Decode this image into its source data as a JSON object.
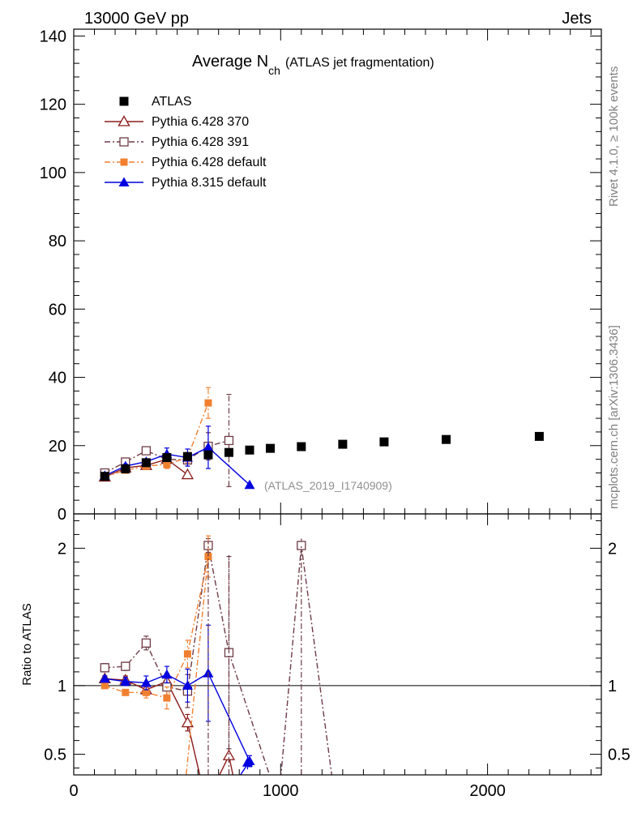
{
  "header": {
    "process": "13000 GeV pp",
    "category": "Jets"
  },
  "side_labels": {
    "rivet": "Rivet 4.1.0, ≥ 100k events",
    "source": "mcplots.cern.ch [arXiv:1306.3436]"
  },
  "chart_data": {
    "type": "line",
    "title_main": "Average N",
    "title_sub": "ch",
    "title_note": "(ATLAS jet fragmentation)",
    "analysis_label": "(ATLAS_2019_I1740909)",
    "main_panel": {
      "xlim": [
        0,
        2550
      ],
      "ylim": [
        0,
        142
      ],
      "yticks": [
        0,
        20,
        40,
        60,
        80,
        100,
        120,
        140
      ],
      "ytick_labels": [
        "0",
        "20",
        "40",
        "60",
        "80",
        "100",
        "120",
        "140"
      ]
    },
    "ratio_panel": {
      "ylabel": "Ratio to ATLAS",
      "ylim": [
        0.35,
        2.25
      ],
      "yticks": [
        0.5,
        1,
        2
      ],
      "ytick_labels": [
        "0.5",
        "1",
        "2"
      ]
    },
    "xticks": [
      0,
      1000,
      2000
    ],
    "xtick_labels": [
      "0",
      "1000",
      "2000"
    ],
    "series": [
      {
        "name": "ATLAS",
        "color": "#000000",
        "marker": "square-filled",
        "line": "none",
        "x": [
          150,
          250,
          350,
          450,
          550,
          650,
          750,
          850,
          950,
          1100,
          1300,
          1500,
          1800,
          2250
        ],
        "y": [
          11.0,
          13.2,
          15.0,
          16.5,
          16.8,
          17.3,
          18.0,
          18.7,
          19.2,
          19.7,
          20.4,
          21.1,
          21.8,
          22.7
        ],
        "yerr": [
          0,
          0,
          0,
          0,
          0,
          0,
          0,
          0,
          0,
          0,
          0,
          0,
          0,
          0
        ],
        "ratio": [
          1,
          1,
          1,
          1,
          1,
          1,
          1,
          1,
          1,
          1,
          1,
          1,
          1,
          1
        ],
        "ratio_err": [
          0,
          0,
          0,
          0,
          0,
          0,
          0,
          0,
          0,
          0,
          0,
          0,
          0,
          0
        ]
      },
      {
        "name": "Pythia 6.428 370",
        "color": "#8b1a1a",
        "marker": "triangle-open",
        "line": "solid",
        "x": [
          150,
          250,
          350,
          450,
          550
        ],
        "y": [
          10.8,
          13.5,
          14.2,
          16.0,
          11.5
        ],
        "yerr": [
          0.5,
          0.6,
          0.8,
          1.2,
          0.0
        ],
        "ratio": [
          1.05,
          1.04,
          0.97,
          1.03,
          0.73
        ],
        "ratio_err": [
          0.02,
          0.03,
          0.04,
          0.06,
          0.06
        ],
        "ratio_extra_x": [
          550,
          640,
          750,
          810
        ],
        "ratio_extra_y": [
          0.73,
          0.15,
          0.49,
          0.05
        ],
        "ratio_extra_marker_x": [
          750
        ],
        "ratio_extra_marker_y": [
          0.49
        ]
      },
      {
        "name": "Pythia 6.428 391",
        "color": "#6e3b46",
        "marker": "square-open",
        "line": "dashdot",
        "x": [
          150,
          250,
          350,
          450,
          550,
          650,
          750
        ],
        "y": [
          12.0,
          15.2,
          18.5,
          16.0,
          15.8,
          19.8,
          21.5
        ],
        "yerr": [
          0.5,
          0.6,
          0.8,
          1.5,
          1.8,
          4.0,
          13.5
        ],
        "ratio": [
          1.13,
          1.14,
          1.31,
          0.99,
          0.96,
          2.02,
          1.24
        ],
        "ratio_err": [
          0.03,
          0.03,
          0.05,
          0.07,
          0.12,
          0.05,
          0.7
        ],
        "ratio_extra_x": [
          750,
          990,
          1100,
          1260
        ],
        "ratio_extra_y": [
          1.24,
          0.15,
          2.02,
          0.2
        ],
        "ratio_extra_marker_x": [
          1100
        ],
        "ratio_extra_marker_y": [
          2.02
        ]
      },
      {
        "name": "Pythia 6.428 default",
        "color": "#f08030",
        "marker": "square-filled-small",
        "line": "dashdot",
        "x": [
          150,
          250,
          350,
          450,
          550,
          650
        ],
        "y": [
          10.8,
          12.8,
          14.0,
          14.5,
          16.5,
          32.5
        ],
        "yerr": [
          0.5,
          0.6,
          0.8,
          1.2,
          1.5,
          4.5
        ],
        "ratio": [
          1.0,
          0.95,
          0.95,
          0.91,
          1.23,
          1.94
        ],
        "ratio_err": [
          0.02,
          0.02,
          0.04,
          0.08,
          0.1,
          0.15
        ],
        "ratio_extra_x": [
          550,
          530
        ],
        "ratio_extra_y": [
          1.23,
          0.15
        ],
        "ratio_extra_marker_x": [],
        "ratio_extra_marker_y": []
      },
      {
        "name": "Pythia 8.315 default",
        "color": "#0000e0",
        "marker": "triangle-filled",
        "line": "solid",
        "x": [
          150,
          250,
          350,
          450,
          550,
          650,
          850
        ],
        "y": [
          11.2,
          14.0,
          15.3,
          17.5,
          16.5,
          19.5,
          8.5
        ],
        "yerr": [
          0.5,
          0.6,
          0.8,
          1.8,
          2.5,
          6.2,
          0.0
        ],
        "ratio": [
          1.05,
          1.03,
          1.02,
          1.08,
          1.0,
          1.09,
          0.45
        ],
        "ratio_err": [
          0.02,
          0.03,
          0.05,
          0.06,
          0.12,
          0.35,
          0.04
        ],
        "ratio_extra_x": [
          650,
          740
        ],
        "ratio_extra_y": [
          1.09,
          0.2
        ],
        "ratio_extra_marker_x": [
          840
        ],
        "ratio_extra_marker_y": [
          0.44
        ]
      }
    ]
  }
}
